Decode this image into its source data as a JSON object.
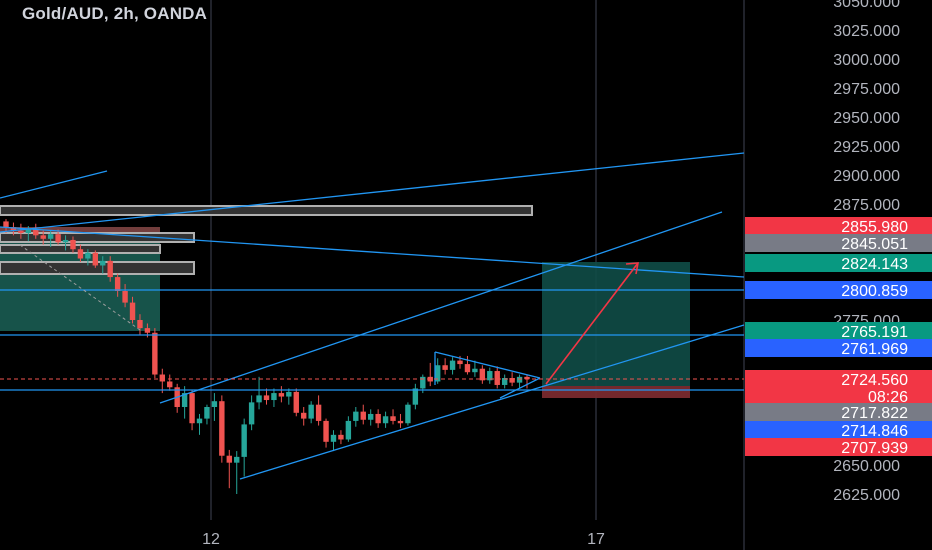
{
  "header": {
    "title": "Gold/AUD, 2h, OANDA"
  },
  "colors": {
    "background": "#000000",
    "grid": "#2a2e39",
    "up": "#26a69a",
    "down": "#ef5350",
    "trendline": "#2196f3",
    "text": "#d1d4dc",
    "price_text": "#b2b5be"
  },
  "chart_data": {
    "type": "candlestick",
    "symbol": "Gold/AUD",
    "interval": "2h",
    "source": "OANDA",
    "x_tick_labels": [
      "12",
      "17"
    ],
    "y_tick_labels": [
      "3050.000",
      "3025.000",
      "3000.000",
      "2975.000",
      "2950.000",
      "2925.000",
      "2900.000",
      "2875.000",
      "2775.000",
      "2650.000",
      "2625.000"
    ],
    "ylim": [
      2612,
      3052
    ],
    "price_labels": [
      {
        "value": "2855.980",
        "color": "#f23645"
      },
      {
        "value": "2845.051",
        "color": "#787b86"
      },
      {
        "value": "2824.143",
        "color": "#089981"
      },
      {
        "value": "2800.859",
        "color": "#2962ff"
      },
      {
        "value": "2765.191",
        "color": "#089981"
      },
      {
        "value": "2761.969",
        "color": "#2962ff"
      },
      {
        "value": "2724.560",
        "color": "#f23645"
      },
      {
        "value": "08:26",
        "color": "#f23645"
      },
      {
        "value": "2717.822",
        "color": "#787b86"
      },
      {
        "value": "2714.846",
        "color": "#2962ff"
      },
      {
        "value": "2707.939",
        "color": "#f23645"
      }
    ],
    "candles": [
      {
        "o": 2860,
        "h": 2862,
        "l": 2850,
        "c": 2855
      },
      {
        "o": 2855,
        "h": 2859,
        "l": 2848,
        "c": 2852
      },
      {
        "o": 2852,
        "h": 2858,
        "l": 2845,
        "c": 2850
      },
      {
        "o": 2850,
        "h": 2856,
        "l": 2843,
        "c": 2853
      },
      {
        "o": 2853,
        "h": 2858,
        "l": 2845,
        "c": 2848
      },
      {
        "o": 2848,
        "h": 2852,
        "l": 2840,
        "c": 2845
      },
      {
        "o": 2845,
        "h": 2852,
        "l": 2838,
        "c": 2849
      },
      {
        "o": 2849,
        "h": 2853,
        "l": 2840,
        "c": 2842
      },
      {
        "o": 2842,
        "h": 2848,
        "l": 2835,
        "c": 2844
      },
      {
        "o": 2844,
        "h": 2847,
        "l": 2833,
        "c": 2836
      },
      {
        "o": 2836,
        "h": 2840,
        "l": 2825,
        "c": 2828
      },
      {
        "o": 2828,
        "h": 2836,
        "l": 2822,
        "c": 2833
      },
      {
        "o": 2833,
        "h": 2835,
        "l": 2820,
        "c": 2822
      },
      {
        "o": 2822,
        "h": 2830,
        "l": 2815,
        "c": 2826
      },
      {
        "o": 2826,
        "h": 2830,
        "l": 2808,
        "c": 2812
      },
      {
        "o": 2812,
        "h": 2815,
        "l": 2795,
        "c": 2800
      },
      {
        "o": 2800,
        "h": 2806,
        "l": 2786,
        "c": 2790
      },
      {
        "o": 2790,
        "h": 2795,
        "l": 2772,
        "c": 2775
      },
      {
        "o": 2775,
        "h": 2780,
        "l": 2762,
        "c": 2768
      },
      {
        "o": 2768,
        "h": 2772,
        "l": 2760,
        "c": 2764
      },
      {
        "o": 2764,
        "h": 2768,
        "l": 2725,
        "c": 2728
      },
      {
        "o": 2728,
        "h": 2733,
        "l": 2712,
        "c": 2722
      },
      {
        "o": 2722,
        "h": 2728,
        "l": 2714,
        "c": 2717
      },
      {
        "o": 2717,
        "h": 2720,
        "l": 2695,
        "c": 2700
      },
      {
        "o": 2700,
        "h": 2718,
        "l": 2690,
        "c": 2712
      },
      {
        "o": 2712,
        "h": 2715,
        "l": 2680,
        "c": 2686
      },
      {
        "o": 2686,
        "h": 2694,
        "l": 2676,
        "c": 2690
      },
      {
        "o": 2690,
        "h": 2702,
        "l": 2685,
        "c": 2700
      },
      {
        "o": 2700,
        "h": 2712,
        "l": 2688,
        "c": 2705
      },
      {
        "o": 2705,
        "h": 2710,
        "l": 2652,
        "c": 2658
      },
      {
        "o": 2658,
        "h": 2663,
        "l": 2630,
        "c": 2652
      },
      {
        "o": 2652,
        "h": 2662,
        "l": 2625,
        "c": 2657
      },
      {
        "o": 2657,
        "h": 2690,
        "l": 2640,
        "c": 2685
      },
      {
        "o": 2685,
        "h": 2710,
        "l": 2680,
        "c": 2704
      },
      {
        "o": 2704,
        "h": 2726,
        "l": 2698,
        "c": 2710
      },
      {
        "o": 2710,
        "h": 2716,
        "l": 2702,
        "c": 2706
      },
      {
        "o": 2706,
        "h": 2716,
        "l": 2700,
        "c": 2712
      },
      {
        "o": 2712,
        "h": 2718,
        "l": 2704,
        "c": 2709
      },
      {
        "o": 2709,
        "h": 2716,
        "l": 2702,
        "c": 2713
      },
      {
        "o": 2713,
        "h": 2716,
        "l": 2692,
        "c": 2695
      },
      {
        "o": 2695,
        "h": 2700,
        "l": 2684,
        "c": 2690
      },
      {
        "o": 2690,
        "h": 2705,
        "l": 2686,
        "c": 2702
      },
      {
        "o": 2702,
        "h": 2710,
        "l": 2684,
        "c": 2688
      },
      {
        "o": 2688,
        "h": 2690,
        "l": 2665,
        "c": 2670
      },
      {
        "o": 2670,
        "h": 2680,
        "l": 2662,
        "c": 2676
      },
      {
        "o": 2676,
        "h": 2680,
        "l": 2668,
        "c": 2672
      },
      {
        "o": 2672,
        "h": 2692,
        "l": 2670,
        "c": 2688
      },
      {
        "o": 2688,
        "h": 2700,
        "l": 2683,
        "c": 2696
      },
      {
        "o": 2696,
        "h": 2702,
        "l": 2685,
        "c": 2689
      },
      {
        "o": 2689,
        "h": 2698,
        "l": 2684,
        "c": 2694
      },
      {
        "o": 2694,
        "h": 2698,
        "l": 2682,
        "c": 2686
      },
      {
        "o": 2686,
        "h": 2696,
        "l": 2682,
        "c": 2692
      },
      {
        "o": 2692,
        "h": 2698,
        "l": 2685,
        "c": 2688
      },
      {
        "o": 2688,
        "h": 2694,
        "l": 2682,
        "c": 2686
      },
      {
        "o": 2686,
        "h": 2704,
        "l": 2684,
        "c": 2702
      },
      {
        "o": 2702,
        "h": 2720,
        "l": 2698,
        "c": 2716
      },
      {
        "o": 2716,
        "h": 2728,
        "l": 2712,
        "c": 2726
      },
      {
        "o": 2726,
        "h": 2738,
        "l": 2718,
        "c": 2722
      },
      {
        "o": 2722,
        "h": 2742,
        "l": 2720,
        "c": 2736
      },
      {
        "o": 2736,
        "h": 2742,
        "l": 2728,
        "c": 2732
      },
      {
        "o": 2732,
        "h": 2743,
        "l": 2728,
        "c": 2740
      },
      {
        "o": 2740,
        "h": 2744,
        "l": 2733,
        "c": 2737
      },
      {
        "o": 2737,
        "h": 2744,
        "l": 2728,
        "c": 2730
      },
      {
        "o": 2730,
        "h": 2740,
        "l": 2726,
        "c": 2733
      },
      {
        "o": 2733,
        "h": 2736,
        "l": 2720,
        "c": 2723
      },
      {
        "o": 2723,
        "h": 2734,
        "l": 2720,
        "c": 2731
      },
      {
        "o": 2731,
        "h": 2735,
        "l": 2716,
        "c": 2719
      },
      {
        "o": 2719,
        "h": 2728,
        "l": 2716,
        "c": 2725
      },
      {
        "o": 2725,
        "h": 2730,
        "l": 2718,
        "c": 2721
      },
      {
        "o": 2721,
        "h": 2728,
        "l": 2716,
        "c": 2726
      },
      {
        "o": 2726,
        "h": 2728,
        "l": 2716,
        "c": 2724
      }
    ]
  }
}
